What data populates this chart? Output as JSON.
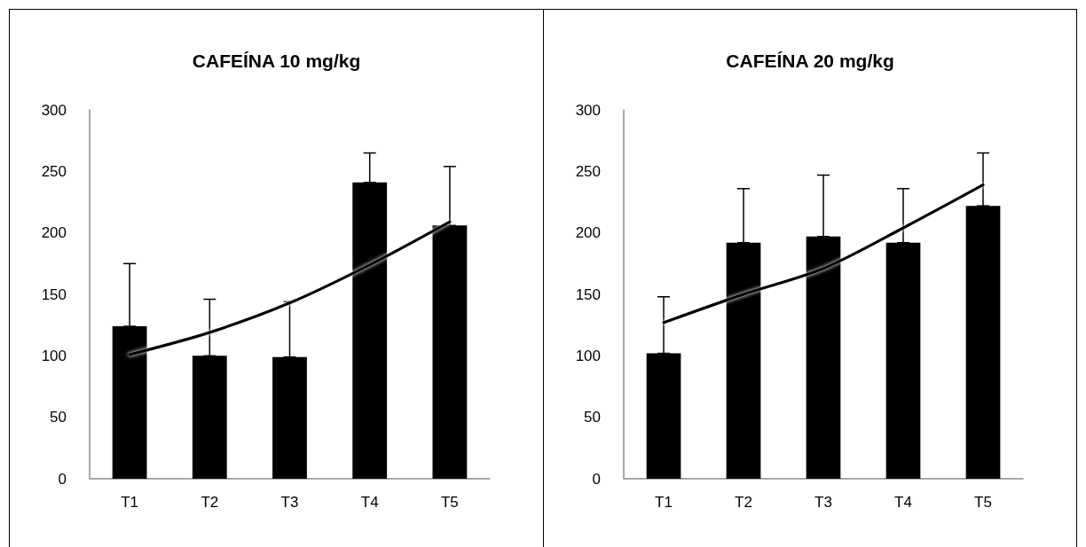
{
  "chart_data": [
    {
      "type": "bar",
      "title": "CAFEÍNA 10 mg/kg",
      "categories": [
        "T1",
        "T2",
        "T3",
        "T4",
        "T5"
      ],
      "ylim": [
        0,
        300
      ],
      "yticks": [
        0,
        50,
        100,
        150,
        200,
        250,
        300
      ],
      "grid": false,
      "series": [
        {
          "color": "#000000",
          "values": [
            124,
            100,
            99,
            241,
            206
          ],
          "errors": [
            [
              124,
              175
            ],
            [
              100,
              146
            ],
            [
              99,
              144
            ],
            [
              241,
              265
            ],
            [
              206,
              254
            ]
          ]
        },
        {
          "type": "line",
          "color": "#000000",
          "x": [
            "T1",
            "T2",
            "T3",
            "T4",
            "T5"
          ],
          "values": [
            101,
            119,
            143,
            174,
            209
          ],
          "marker": "none",
          "line_style": "solid"
        }
      ]
    },
    {
      "type": "bar",
      "title": "CAFEÍNA 20 mg/kg",
      "categories": [
        "T1",
        "T2",
        "T3",
        "T4",
        "T5"
      ],
      "ylim": [
        0,
        300
      ],
      "yticks": [
        0,
        50,
        100,
        150,
        200,
        250,
        300
      ],
      "grid": false,
      "series": [
        {
          "color": "#000000",
          "values": [
            102,
            192,
            197,
            192,
            222
          ],
          "errors": [
            [
              102,
              148
            ],
            [
              192,
              236
            ],
            [
              197,
              247
            ],
            [
              192,
              236
            ],
            [
              222,
              265
            ]
          ]
        },
        {
          "type": "line",
          "color": "#000000",
          "x": [
            "T1",
            "T2",
            "T3",
            "T4",
            "T5"
          ],
          "values": [
            127,
            150,
            171,
            204,
            239
          ],
          "marker": "none",
          "line_style": "solid"
        }
      ]
    }
  ]
}
